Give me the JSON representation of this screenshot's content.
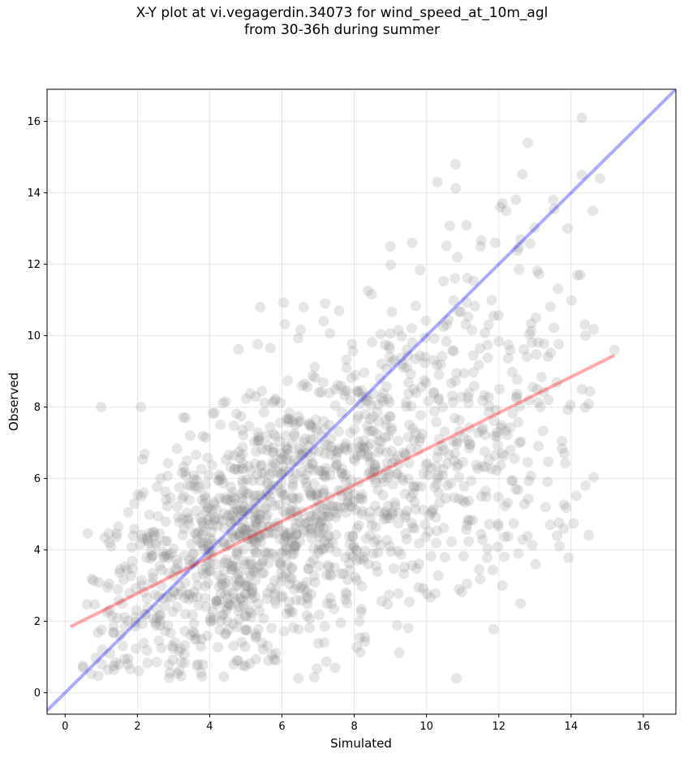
{
  "chart_data": {
    "type": "scatter",
    "title_line1": "X-Y plot at vi.vegagerdin.34073 for wind_speed_at_10m_agl",
    "title_line2": "from 30-36h during summer",
    "xlabel": "Simulated",
    "ylabel": "Observed",
    "xlim": [
      -0.5,
      16.9
    ],
    "ylim": [
      -0.6,
      16.9
    ],
    "xticks": [
      0,
      2,
      4,
      6,
      8,
      10,
      12,
      14,
      16
    ],
    "yticks": [
      0,
      2,
      4,
      6,
      8,
      10,
      12,
      14,
      16
    ],
    "grid": true,
    "point_color": "#808080",
    "identity_line": {
      "color": "#0000ff",
      "opacity": 0.33,
      "x": [
        -0.5,
        16.9
      ],
      "y": [
        -0.5,
        16.9
      ]
    },
    "fit_line": {
      "color": "#ff0000",
      "opacity": 0.33,
      "x": [
        0.15,
        15.2
      ],
      "y": [
        1.85,
        9.45
      ]
    },
    "outliers": [
      [
        14.3,
        16.1
      ],
      [
        12.8,
        15.4
      ],
      [
        10.8,
        14.8
      ],
      [
        14.8,
        14.4
      ],
      [
        10.3,
        14.3
      ],
      [
        14.3,
        14.5
      ],
      [
        12.1,
        13.7
      ],
      [
        13.5,
        13.8
      ],
      [
        14.6,
        13.5
      ],
      [
        12.2,
        13.5
      ],
      [
        13.9,
        13.0
      ],
      [
        11.9,
        12.6
      ],
      [
        12.6,
        12.7
      ],
      [
        9.6,
        12.6
      ],
      [
        11.5,
        12.5
      ],
      [
        9.0,
        12.5
      ],
      [
        15.2,
        9.6
      ],
      [
        14.4,
        10.0
      ],
      [
        14.3,
        8.5
      ],
      [
        14.4,
        5.8
      ],
      [
        13.8,
        4.6
      ],
      [
        12.6,
        2.5
      ],
      [
        12.1,
        3.0
      ],
      [
        10.9,
        2.9
      ],
      [
        1.0,
        8.0
      ],
      [
        5.4,
        10.8
      ],
      [
        6.6,
        10.8
      ],
      [
        7.2,
        10.9
      ],
      [
        0.5,
        0.7
      ],
      [
        2.1,
        8.0
      ]
    ],
    "cloud": {
      "n": 1550,
      "seed": 34073,
      "sim_range": [
        0.2,
        15.2
      ],
      "sim_mode": 5.0,
      "obs_intercept": 1.85,
      "obs_slope": 0.5,
      "obs_spread": 1.9,
      "obs_min": 0.4,
      "obs_max": 14.8
    }
  }
}
